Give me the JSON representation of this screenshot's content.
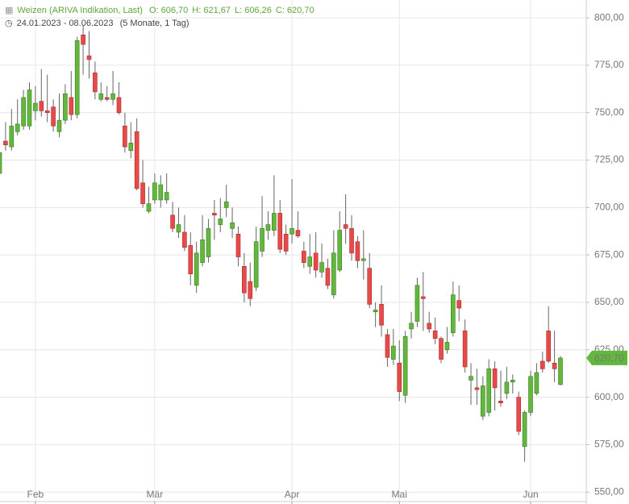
{
  "header": {
    "title": "Weizen (ARIVA Indikation, Last)",
    "open": "O: 606,70",
    "high": "H: 621,67",
    "low": "L: 606,26",
    "close": "C: 620,70",
    "date_range": "24.01.2023 - 08.06.2023",
    "period": "(5 Monate, 1 Tag)"
  },
  "chart_data": {
    "type": "candlestick",
    "categories": [
      null,
      null,
      null,
      null,
      null,
      null,
      "Feb",
      null,
      null,
      null,
      null,
      null,
      null,
      null,
      null,
      null,
      null,
      null,
      null,
      null,
      null,
      null,
      null,
      null,
      null,
      null,
      "Mär",
      null,
      null,
      null,
      null,
      null,
      null,
      null,
      null,
      null,
      null,
      null,
      null,
      null,
      null,
      null,
      null,
      null,
      null,
      null,
      null,
      null,
      null,
      "Apr",
      null,
      null,
      null,
      null,
      null,
      null,
      null,
      null,
      null,
      null,
      null,
      null,
      null,
      null,
      null,
      null,
      null,
      "Mai",
      null,
      null,
      null,
      null,
      null,
      null,
      null,
      null,
      null,
      null,
      null,
      null,
      null,
      null,
      null,
      null,
      null,
      null,
      null,
      null,
      null,
      "Jun",
      null,
      null,
      null,
      null,
      null
    ],
    "open": [
      718,
      735,
      732,
      740,
      743,
      743,
      751,
      756,
      751,
      753,
      740,
      746,
      758,
      749,
      791,
      780,
      771,
      757,
      758,
      757,
      758,
      743,
      730,
      740,
      713,
      698,
      704,
      704,
      704,
      696,
      687,
      687,
      680,
      659,
      671,
      674,
      697,
      691,
      700,
      689,
      686,
      669,
      661,
      658,
      677,
      688,
      688,
      697,
      686,
      686,
      688,
      677,
      669,
      676,
      666,
      668,
      654,
      667,
      691,
      689,
      682,
      672,
      668,
      645,
      649,
      633,
      620,
      618,
      601,
      636,
      640,
      653,
      639,
      635,
      631,
      625,
      634,
      651,
      635,
      609,
      605,
      590,
      592,
      615,
      598,
      602,
      608,
      600,
      574,
      592,
      602,
      619,
      635,
      618,
      606.7
    ],
    "high": [
      731,
      745,
      752,
      757,
      762,
      766,
      764,
      773,
      770,
      757,
      760,
      765,
      772,
      790,
      796,
      793,
      777,
      766,
      764,
      772,
      766,
      750,
      745,
      747,
      725,
      711,
      718,
      717,
      718,
      703,
      700,
      696,
      687,
      682,
      696,
      694,
      704,
      705,
      712,
      700,
      690,
      676,
      671,
      690,
      706,
      698,
      717,
      704,
      691,
      715,
      698,
      682,
      686,
      687,
      681,
      673,
      688,
      698,
      707,
      696,
      685,
      688,
      676,
      650,
      659,
      636,
      636,
      630,
      635,
      645,
      663,
      666,
      645,
      642,
      632,
      637,
      661,
      659,
      641,
      618,
      615,
      611,
      620,
      619,
      614,
      616,
      612,
      603,
      593,
      614,
      618,
      624,
      648,
      635,
      621.67
    ],
    "low": [
      717,
      730,
      730,
      738,
      741,
      741,
      746,
      748,
      745,
      740,
      737,
      744,
      746,
      747,
      770,
      768,
      757,
      756,
      756,
      754,
      749,
      729,
      726,
      709,
      700,
      697,
      702,
      700,
      702,
      687,
      684,
      677,
      659,
      655,
      669,
      671,
      683,
      687,
      695,
      684,
      669,
      650,
      648,
      656,
      674,
      683,
      685,
      676,
      675,
      681,
      684,
      668,
      665,
      663,
      663,
      657,
      652,
      666,
      681,
      672,
      668,
      662,
      647,
      637,
      632,
      616,
      617,
      598,
      597,
      631,
      637,
      635,
      634,
      628,
      618,
      623,
      632,
      640,
      613,
      596,
      596,
      588,
      590,
      593,
      595,
      599,
      602,
      580,
      566,
      590,
      601,
      613,
      618,
      608,
      606.26
    ],
    "close": [
      729,
      733,
      743,
      744,
      758,
      762,
      755,
      751,
      750,
      743,
      746,
      760,
      749,
      788,
      786,
      778,
      761,
      760,
      757,
      760,
      750,
      732,
      734,
      710,
      702,
      702,
      713,
      712,
      708,
      689,
      691,
      679,
      665,
      676,
      683,
      689,
      696,
      694,
      703,
      692,
      674,
      655,
      652,
      682,
      689,
      691,
      697,
      678,
      677,
      689,
      685,
      671,
      674,
      667,
      671,
      659,
      676,
      688,
      689,
      676,
      672,
      673,
      649,
      646,
      638,
      621,
      627,
      603,
      632,
      639,
      659,
      652,
      636,
      631,
      620,
      629,
      654,
      647,
      616,
      611,
      604,
      606,
      615,
      605,
      597,
      608,
      609,
      582,
      592,
      611,
      613,
      615,
      619,
      615,
      620.7
    ],
    "up_color": "#62b83c",
    "down_color": "#e84a4a",
    "ylim": [
      545,
      809.4
    ],
    "yticks": [
      {
        "value": 550,
        "label": "550,00"
      },
      {
        "value": 575,
        "label": "575,00"
      },
      {
        "value": 600,
        "label": "600,00"
      },
      {
        "value": 625,
        "label": "625,00"
      },
      {
        "value": 650,
        "label": "650,00"
      },
      {
        "value": 675,
        "label": "675,00"
      },
      {
        "value": 700,
        "label": "700,00"
      },
      {
        "value": 725,
        "label": "725,00"
      },
      {
        "value": 750,
        "label": "750,00"
      },
      {
        "value": 775,
        "label": "775,00"
      },
      {
        "value": 800,
        "label": "800,00"
      }
    ],
    "last_price": {
      "value": 620.7,
      "label": "620,70"
    },
    "grid": true
  }
}
